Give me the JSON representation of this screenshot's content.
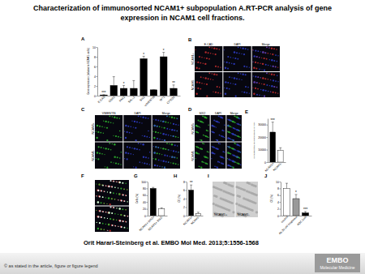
{
  "title": [
    "Characterization of immunosorted NCAM1+ subpopulation A.RT-PCR analysis of gene",
    "expression in NCAM1 cell fractions."
  ],
  "citation": "Orit Harari-Steinberg et al. EMBO Mol Med. 2013;5:1556-1568",
  "footer": "© as stated in the article, figure or figure legend",
  "logo": [
    "EMBO",
    "Molecular Medicine"
  ],
  "chart_data": [
    {
      "type": "bar",
      "title": "A",
      "ylabel": "Gene expression (relative to NCAM1- cells)",
      "categories": [
        "E-CAD",
        "OSR1",
        "PAX2",
        "SALL1",
        "SIX2",
        "VIMENTIN",
        "WT1",
        "CITED1"
      ],
      "values": [
        0.15,
        2.1,
        1.5,
        1.5,
        7.6,
        1.2,
        8.0,
        1.5
      ],
      "errors": [
        0.05,
        1.8,
        0.6,
        1.6,
        0.5,
        0,
        0.9,
        0.7
      ],
      "annotations": [
        "***",
        null,
        "*",
        null,
        "*",
        null,
        "*",
        "**"
      ],
      "color": "#000000",
      "ylim": [
        0,
        10
      ],
      "yticks": [
        0,
        2,
        4,
        6,
        8,
        10
      ]
    },
    {
      "type": "bar",
      "title": "E",
      "ylabel": "Corrected total cell fluorescence (CTCF)",
      "categories": [
        "NCAM1+",
        "NCAM1-"
      ],
      "values": [
        24000,
        9500
      ],
      "errors": [
        8000,
        2000
      ],
      "annotations": [
        "***",
        null
      ],
      "colors": [
        "#000000",
        "#ffffff"
      ],
      "ylim": [
        0,
        35000
      ],
      "yticks": [
        0,
        10000,
        20000,
        30000
      ]
    },
    {
      "type": "bar",
      "title": "G",
      "ylabel": "Cells (%)",
      "categories": [
        "NCAM1+ SIX2+",
        "NCAM1+ SIX2-"
      ],
      "values": [
        80,
        20
      ],
      "errors": [
        3,
        3
      ],
      "colors": [
        "#000000",
        "#ffffff"
      ],
      "ylim": [
        0,
        100
      ],
      "yticks": [
        0,
        20,
        40,
        60,
        80,
        100
      ]
    },
    {
      "type": "bar",
      "title": "H",
      "ylabel": "CE (%)",
      "categories": [
        "NCAM1+",
        "NCAM1-"
      ],
      "values": [
        6,
        0.5
      ],
      "errors": [
        1.2,
        0.3
      ],
      "annotations": [
        "**",
        null
      ],
      "colors": [
        "#000000",
        "#ffffff"
      ],
      "ylim": [
        0,
        8
      ],
      "yticks": [
        0,
        2,
        4,
        6,
        8
      ]
    },
    {
      "type": "bar",
      "title": "J",
      "ylabel": "CE (%)",
      "categories": [
        "control",
        "Ab 35 nM treatment",
        "ADC 5nM"
      ],
      "values": [
        8,
        5,
        0.8
      ],
      "errors": [
        1.5,
        1.2,
        0.4
      ],
      "annotations": [
        null,
        "*",
        "***"
      ],
      "colors": [
        "#ffffff",
        "#999999",
        "#000000"
      ],
      "ylim": [
        0,
        10
      ],
      "yticks": [
        0,
        2,
        4,
        6,
        8,
        10
      ]
    }
  ],
  "images": [
    {
      "title": "B",
      "columns": [
        "E-CAD",
        "DAPI",
        "Merge"
      ],
      "rows": [
        "NCAM1+",
        "NCAM1-"
      ],
      "colors": [
        [
          "#d03030"
        ],
        [
          "#3040d0"
        ],
        [
          "#d03030",
          "#3040d0"
        ]
      ]
    },
    {
      "title": "C",
      "columns": [
        "VIMENTIN",
        "DAPI",
        "Merge"
      ],
      "rows": [
        "NCAM1+",
        "NCAM1-"
      ],
      "colors": [
        [
          "#30c030"
        ],
        [
          "#3040d0"
        ],
        [
          "#30c030",
          "#3040d0"
        ]
      ]
    },
    {
      "title": "D",
      "columns": [
        "SIX2",
        "DAPI",
        "Merge"
      ],
      "rows": [
        "NCAM1+",
        "NCAM1-"
      ],
      "colors": [
        [
          "#30c030"
        ],
        [
          "#3040d0"
        ],
        [
          "#30c030",
          "#3040d0"
        ]
      ]
    },
    {
      "title": "F",
      "columns": [
        null
      ],
      "rows": [
        null,
        null
      ],
      "colors": [
        [
          "#d03030",
          "#30c030",
          "#ffffff"
        ]
      ]
    },
    {
      "title": "I",
      "columns": [
        null,
        null
      ],
      "rows": [
        null
      ],
      "insets": [
        "NCAM1+",
        "NCAM1-"
      ],
      "brightfield": true,
      "colors": [
        [
          "#8a8a8a"
        ],
        [
          "#8a8a8a"
        ]
      ]
    }
  ]
}
